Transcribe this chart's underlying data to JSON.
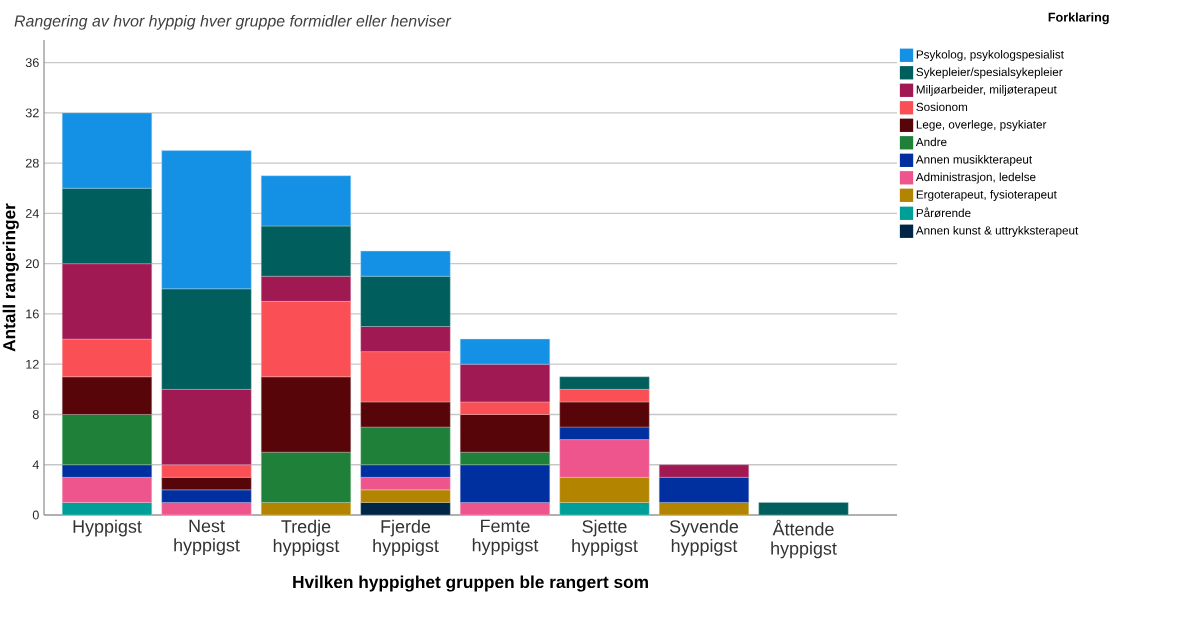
{
  "chart_data": {
    "type": "bar",
    "stacked": true,
    "title": "Rangering av hvor hyppig hver gruppe formidler eller henviser",
    "xlabel": "Hvilken hyppighet gruppen ble rangert som",
    "ylabel": "Antall rangeringer",
    "legend_title": "Forklaring",
    "categories": [
      "Hyppigst",
      "Nest hyppigst",
      "Tredje hyppigst",
      "Fjerde hyppigst",
      "Femte hyppigst",
      "Sjette hyppigst",
      "Syvende hyppigst",
      "Åttende hyppigst"
    ],
    "series": [
      {
        "name": "Annen kunst & uttrykksterapeut",
        "color": "#002647",
        "values": [
          null,
          null,
          null,
          1,
          null,
          null,
          null,
          null
        ]
      },
      {
        "name": "Pårørende",
        "color": "#009e99",
        "values": [
          1,
          null,
          null,
          null,
          null,
          1,
          null,
          null
        ]
      },
      {
        "name": "Ergoterapeut, fysioterapeut",
        "color": "#b38400",
        "values": [
          null,
          null,
          1,
          1,
          null,
          2,
          1,
          null
        ]
      },
      {
        "name": "Administrasjon, ledelse",
        "color": "#ee558c",
        "values": [
          2,
          1,
          null,
          1,
          1,
          3,
          null,
          null
        ]
      },
      {
        "name": "Annen musikkterapeut",
        "color": "#002f9f",
        "values": [
          1,
          1,
          null,
          1,
          3,
          1,
          2,
          null
        ]
      },
      {
        "name": "Andre",
        "color": "#1e8039",
        "values": [
          4,
          null,
          4,
          3,
          1,
          null,
          null,
          null
        ]
      },
      {
        "name": "Lege, overlege, psykiater",
        "color": "#570509",
        "values": [
          3,
          1,
          6,
          2,
          3,
          2,
          null,
          null
        ]
      },
      {
        "name": "Sosionom",
        "color": "#fa5055",
        "values": [
          3,
          1,
          6,
          4,
          1,
          1,
          null,
          null
        ]
      },
      {
        "name": "Miljøarbeider, miljøterapeut",
        "color": "#a01952",
        "values": [
          6,
          6,
          2,
          2,
          3,
          null,
          1,
          null
        ]
      },
      {
        "name": "Sykepleier/spesialsykepleier",
        "color": "#005e5c",
        "values": [
          6,
          8,
          4,
          4,
          null,
          1,
          null,
          1
        ]
      },
      {
        "name": "Psykolog, psykologspesialist",
        "color": "#1491e5",
        "values": [
          6,
          11,
          4,
          2,
          2,
          null,
          null,
          null
        ]
      }
    ],
    "ylim": [
      0,
      37.8
    ],
    "yticks": [
      0,
      4,
      8,
      12,
      16,
      20,
      24,
      28,
      32,
      36
    ],
    "grid": "y",
    "legend": "right"
  }
}
